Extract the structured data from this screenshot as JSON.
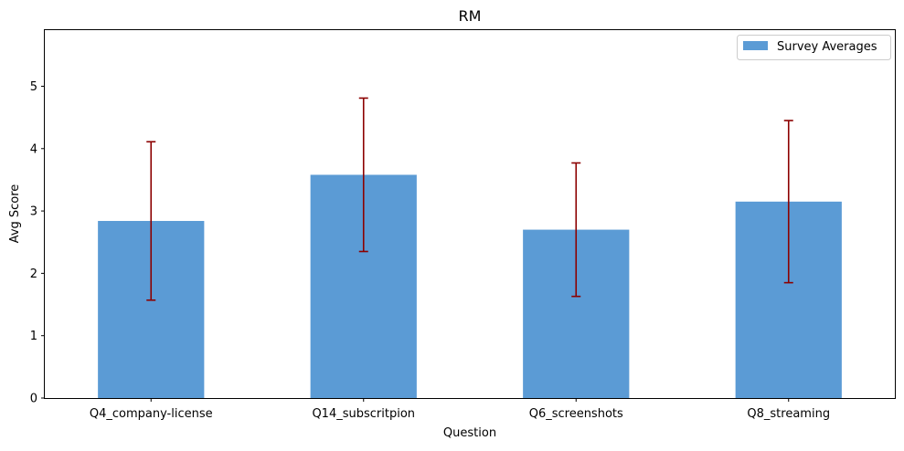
{
  "chart_data": {
    "type": "bar",
    "title": "RM",
    "xlabel": "Question",
    "ylabel": "Avg Score",
    "categories": [
      "Q4_company-license",
      "Q14_subscritpion",
      "Q6_screenshots",
      "Q8_streaming"
    ],
    "series": [
      {
        "name": "Survey Averages",
        "values": [
          2.84,
          3.58,
          2.7,
          3.15
        ],
        "error": [
          1.27,
          1.23,
          1.07,
          1.3
        ],
        "color": "#5b9bd5",
        "error_color": "#8b0000"
      }
    ],
    "ylim": [
      0,
      5.9
    ],
    "yticks": [
      0,
      1,
      2,
      3,
      4,
      5
    ],
    "grid": false,
    "legend_position": "top-right"
  }
}
